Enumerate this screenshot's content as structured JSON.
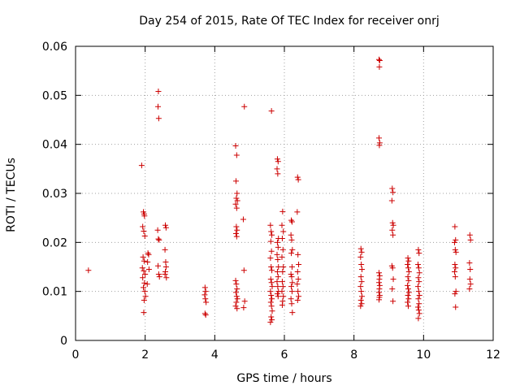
{
  "chart_data": {
    "type": "scatter",
    "title": "Day 254 of 2015, Rate Of TEC Index for receiver onrj",
    "xlabel": "GPS time / hours",
    "ylabel": "ROTI / TECUs",
    "xlim": [
      0,
      12
    ],
    "ylim": [
      0,
      0.06
    ],
    "xticks": [
      0,
      2,
      4,
      6,
      8,
      10,
      12
    ],
    "yticks": [
      0,
      0.01,
      0.02,
      0.03,
      0.04,
      0.05,
      0.06
    ],
    "xtick_labels": [
      "0",
      "2",
      "4",
      "6",
      "8",
      "10",
      "12"
    ],
    "ytick_labels": [
      "0",
      "0.01",
      "0.02",
      "0.03",
      "0.04",
      "0.05",
      "0.06"
    ],
    "grid": true,
    "marker": "+",
    "color": "#cc0000",
    "series": [
      {
        "name": "ROTI",
        "points": [
          [
            0.37,
            0.0143
          ],
          [
            1.9,
            0.0357
          ],
          [
            1.95,
            0.0262
          ],
          [
            1.97,
            0.0258
          ],
          [
            1.98,
            0.0254
          ],
          [
            1.93,
            0.0232
          ],
          [
            1.96,
            0.0223
          ],
          [
            1.99,
            0.0213
          ],
          [
            1.94,
            0.017
          ],
          [
            1.97,
            0.0162
          ],
          [
            1.92,
            0.0148
          ],
          [
            1.96,
            0.0142
          ],
          [
            2.0,
            0.0135
          ],
          [
            1.93,
            0.0128
          ],
          [
            1.98,
            0.0117
          ],
          [
            1.95,
            0.0108
          ],
          [
            1.99,
            0.01
          ],
          [
            2.01,
            0.009
          ],
          [
            1.97,
            0.0082
          ],
          [
            1.96,
            0.0057
          ],
          [
            2.08,
            0.0178
          ],
          [
            2.1,
            0.0175
          ],
          [
            2.07,
            0.016
          ],
          [
            2.11,
            0.0145
          ],
          [
            2.06,
            0.0115
          ],
          [
            2.38,
            0.0508
          ],
          [
            2.37,
            0.0477
          ],
          [
            2.39,
            0.0453
          ],
          [
            2.36,
            0.0225
          ],
          [
            2.38,
            0.0207
          ],
          [
            2.4,
            0.0205
          ],
          [
            2.37,
            0.0152
          ],
          [
            2.39,
            0.0135
          ],
          [
            2.41,
            0.013
          ],
          [
            2.58,
            0.0235
          ],
          [
            2.6,
            0.023
          ],
          [
            2.57,
            0.0185
          ],
          [
            2.59,
            0.016
          ],
          [
            2.6,
            0.015
          ],
          [
            2.58,
            0.014
          ],
          [
            2.57,
            0.0135
          ],
          [
            2.61,
            0.0128
          ],
          [
            3.72,
            0.0108
          ],
          [
            3.74,
            0.01
          ],
          [
            3.71,
            0.0093
          ],
          [
            3.73,
            0.0085
          ],
          [
            3.75,
            0.0078
          ],
          [
            3.72,
            0.0055
          ],
          [
            3.74,
            0.0052
          ],
          [
            4.6,
            0.0397
          ],
          [
            4.63,
            0.0378
          ],
          [
            4.61,
            0.0325
          ],
          [
            4.64,
            0.03
          ],
          [
            4.62,
            0.029
          ],
          [
            4.65,
            0.0285
          ],
          [
            4.6,
            0.0278
          ],
          [
            4.63,
            0.027
          ],
          [
            4.62,
            0.0232
          ],
          [
            4.64,
            0.0225
          ],
          [
            4.61,
            0.0218
          ],
          [
            4.63,
            0.0212
          ],
          [
            4.6,
            0.0122
          ],
          [
            4.62,
            0.0115
          ],
          [
            4.64,
            0.0105
          ],
          [
            4.61,
            0.0098
          ],
          [
            4.63,
            0.009
          ],
          [
            4.65,
            0.0085
          ],
          [
            4.62,
            0.0078
          ],
          [
            4.6,
            0.007
          ],
          [
            4.64,
            0.0065
          ],
          [
            4.85,
            0.0477
          ],
          [
            4.82,
            0.0247
          ],
          [
            4.84,
            0.0143
          ],
          [
            4.86,
            0.008
          ],
          [
            4.83,
            0.0067
          ],
          [
            5.63,
            0.0468
          ],
          [
            5.6,
            0.0235
          ],
          [
            5.62,
            0.0222
          ],
          [
            5.64,
            0.0215
          ],
          [
            5.61,
            0.0202
          ],
          [
            5.63,
            0.0182
          ],
          [
            5.6,
            0.0168
          ],
          [
            5.62,
            0.015
          ],
          [
            5.64,
            0.0143
          ],
          [
            5.61,
            0.0125
          ],
          [
            5.63,
            0.0118
          ],
          [
            5.65,
            0.011
          ],
          [
            5.6,
            0.01
          ],
          [
            5.62,
            0.0092
          ],
          [
            5.64,
            0.0085
          ],
          [
            5.61,
            0.0078
          ],
          [
            5.63,
            0.007
          ],
          [
            5.65,
            0.006
          ],
          [
            5.62,
            0.0048
          ],
          [
            5.64,
            0.0042
          ],
          [
            5.6,
            0.0037
          ],
          [
            5.8,
            0.037
          ],
          [
            5.82,
            0.0365
          ],
          [
            5.79,
            0.035
          ],
          [
            5.81,
            0.034
          ],
          [
            5.83,
            0.0208
          ],
          [
            5.8,
            0.02
          ],
          [
            5.82,
            0.019
          ],
          [
            5.79,
            0.0175
          ],
          [
            5.81,
            0.0165
          ],
          [
            5.83,
            0.015
          ],
          [
            5.8,
            0.014
          ],
          [
            5.82,
            0.013
          ],
          [
            5.79,
            0.012
          ],
          [
            5.81,
            0.011
          ],
          [
            5.83,
            0.01
          ],
          [
            5.8,
            0.0095
          ],
          [
            5.82,
            0.009
          ],
          [
            5.95,
            0.0263
          ],
          [
            5.93,
            0.0235
          ],
          [
            5.97,
            0.0222
          ],
          [
            5.94,
            0.0208
          ],
          [
            5.96,
            0.0185
          ],
          [
            5.93,
            0.017
          ],
          [
            5.97,
            0.015
          ],
          [
            5.95,
            0.014
          ],
          [
            5.94,
            0.012
          ],
          [
            5.96,
            0.011
          ],
          [
            5.93,
            0.01
          ],
          [
            5.97,
            0.009
          ],
          [
            5.95,
            0.008
          ],
          [
            5.94,
            0.0072
          ],
          [
            6.2,
            0.0245
          ],
          [
            6.22,
            0.0242
          ],
          [
            6.19,
            0.0215
          ],
          [
            6.21,
            0.0205
          ],
          [
            6.23,
            0.0185
          ],
          [
            6.2,
            0.0178
          ],
          [
            6.22,
            0.015
          ],
          [
            6.19,
            0.0135
          ],
          [
            6.21,
            0.013
          ],
          [
            6.23,
            0.0118
          ],
          [
            6.2,
            0.011
          ],
          [
            6.22,
            0.01
          ],
          [
            6.19,
            0.0085
          ],
          [
            6.21,
            0.0075
          ],
          [
            6.23,
            0.0057
          ],
          [
            6.38,
            0.0333
          ],
          [
            6.4,
            0.0328
          ],
          [
            6.37,
            0.0262
          ],
          [
            6.39,
            0.0175
          ],
          [
            6.41,
            0.0155
          ],
          [
            6.38,
            0.014
          ],
          [
            6.4,
            0.0125
          ],
          [
            6.37,
            0.0115
          ],
          [
            6.39,
            0.01
          ],
          [
            6.41,
            0.009
          ],
          [
            6.38,
            0.0082
          ],
          [
            8.2,
            0.0187
          ],
          [
            8.22,
            0.018
          ],
          [
            8.19,
            0.017
          ],
          [
            8.21,
            0.0155
          ],
          [
            8.23,
            0.0145
          ],
          [
            8.2,
            0.013
          ],
          [
            8.22,
            0.012
          ],
          [
            8.19,
            0.011
          ],
          [
            8.21,
            0.01
          ],
          [
            8.23,
            0.009
          ],
          [
            8.2,
            0.0082
          ],
          [
            8.22,
            0.0075
          ],
          [
            8.19,
            0.007
          ],
          [
            8.72,
            0.0573
          ],
          [
            8.74,
            0.0571
          ],
          [
            8.73,
            0.0558
          ],
          [
            8.72,
            0.0413
          ],
          [
            8.74,
            0.0403
          ],
          [
            8.73,
            0.0398
          ],
          [
            8.72,
            0.0138
          ],
          [
            8.74,
            0.0132
          ],
          [
            8.73,
            0.0125
          ],
          [
            8.72,
            0.0118
          ],
          [
            8.74,
            0.0112
          ],
          [
            8.73,
            0.0105
          ],
          [
            8.72,
            0.0098
          ],
          [
            8.74,
            0.0092
          ],
          [
            8.73,
            0.0088
          ],
          [
            8.72,
            0.0083
          ],
          [
            9.1,
            0.031
          ],
          [
            9.12,
            0.0302
          ],
          [
            9.09,
            0.0285
          ],
          [
            9.11,
            0.024
          ],
          [
            9.13,
            0.0235
          ],
          [
            9.1,
            0.0225
          ],
          [
            9.12,
            0.0215
          ],
          [
            9.09,
            0.0152
          ],
          [
            9.11,
            0.0148
          ],
          [
            9.13,
            0.0125
          ],
          [
            9.1,
            0.0105
          ],
          [
            9.12,
            0.008
          ],
          [
            9.55,
            0.0168
          ],
          [
            9.57,
            0.0162
          ],
          [
            9.54,
            0.0155
          ],
          [
            9.56,
            0.0148
          ],
          [
            9.58,
            0.014
          ],
          [
            9.55,
            0.013
          ],
          [
            9.57,
            0.0122
          ],
          [
            9.54,
            0.0112
          ],
          [
            9.56,
            0.0105
          ],
          [
            9.58,
            0.0098
          ],
          [
            9.55,
            0.0092
          ],
          [
            9.57,
            0.0085
          ],
          [
            9.54,
            0.0078
          ],
          [
            9.56,
            0.007
          ],
          [
            9.85,
            0.0185
          ],
          [
            9.87,
            0.0178
          ],
          [
            9.84,
            0.0155
          ],
          [
            9.86,
            0.0148
          ],
          [
            9.88,
            0.0138
          ],
          [
            9.85,
            0.0128
          ],
          [
            9.87,
            0.012
          ],
          [
            9.84,
            0.011
          ],
          [
            9.86,
            0.01
          ],
          [
            9.88,
            0.0092
          ],
          [
            9.85,
            0.0085
          ],
          [
            9.87,
            0.0075
          ],
          [
            9.84,
            0.0068
          ],
          [
            9.86,
            0.0062
          ],
          [
            9.88,
            0.0055
          ],
          [
            9.85,
            0.0045
          ],
          [
            10.9,
            0.0232
          ],
          [
            10.92,
            0.0205
          ],
          [
            10.89,
            0.02
          ],
          [
            10.91,
            0.0185
          ],
          [
            10.93,
            0.018
          ],
          [
            10.9,
            0.0155
          ],
          [
            10.92,
            0.0148
          ],
          [
            10.89,
            0.014
          ],
          [
            10.91,
            0.013
          ],
          [
            10.93,
            0.01
          ],
          [
            10.9,
            0.0095
          ],
          [
            10.92,
            0.0068
          ],
          [
            11.33,
            0.0215
          ],
          [
            11.35,
            0.0205
          ],
          [
            11.32,
            0.0158
          ],
          [
            11.34,
            0.0145
          ],
          [
            11.33,
            0.0125
          ],
          [
            11.35,
            0.0115
          ],
          [
            11.32,
            0.0105
          ]
        ]
      }
    ]
  }
}
